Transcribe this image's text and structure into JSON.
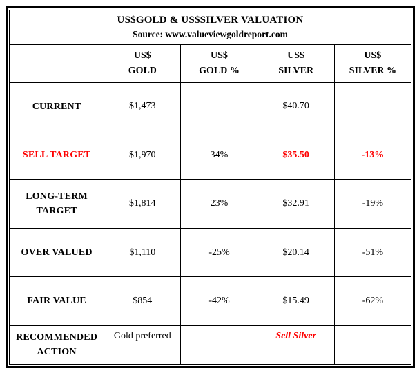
{
  "colors": {
    "accent_red": "#fe0000",
    "text": "#000000",
    "border": "#000000",
    "background": "#ffffff"
  },
  "table": {
    "title": "US$GOLD & US$SILVER VALUATION",
    "subtitle": "Source: www.valueviewgoldreport.com",
    "headers": [
      {
        "lines": [
          "US$",
          "GOLD"
        ]
      },
      {
        "lines": [
          "US$",
          "GOLD %"
        ]
      },
      {
        "lines": [
          "US$",
          "SILVER"
        ]
      },
      {
        "lines": [
          "US$",
          "SILVER %"
        ]
      }
    ],
    "rows": [
      {
        "label_lines": [
          "CURRENT"
        ],
        "gold": "$1,473",
        "gold_pct": "",
        "silver": "$40.70",
        "silver_pct": ""
      },
      {
        "label_lines": [
          "SELL TARGET"
        ],
        "gold": "$1,970",
        "gold_pct": "34%",
        "silver": "$35.50",
        "silver_pct": "-13%"
      },
      {
        "label_lines": [
          "LONG-TERM",
          "TARGET"
        ],
        "gold": "$1,814",
        "gold_pct": "23%",
        "silver": "$32.91",
        "silver_pct": "-19%"
      },
      {
        "label_lines": [
          "OVER VALUED"
        ],
        "gold": "$1,110",
        "gold_pct": "-25%",
        "silver": "$20.14",
        "silver_pct": "-51%"
      },
      {
        "label_lines": [
          "FAIR VALUE"
        ],
        "gold": "$854",
        "gold_pct": "-42%",
        "silver": "$15.49",
        "silver_pct": "-62%"
      },
      {
        "label_lines": [
          "RECOMMENDED",
          "ACTION"
        ],
        "gold": "Gold preferred",
        "gold_pct": "",
        "silver": "Sell Silver",
        "silver_pct": ""
      }
    ]
  },
  "chart_data": {
    "type": "table",
    "title": "US$GOLD & US$SILVER VALUATION",
    "subtitle": "Source: www.valueviewgoldreport.com",
    "columns": [
      "",
      "US$ GOLD",
      "US$ GOLD %",
      "US$ SILVER",
      "US$ SILVER %"
    ],
    "rows": [
      [
        "CURRENT",
        "$1,473",
        "",
        "$40.70",
        ""
      ],
      [
        "SELL TARGET",
        "$1,970",
        "34%",
        "$35.50",
        "-13%"
      ],
      [
        "LONG-TERM TARGET",
        "$1,814",
        "23%",
        "$32.91",
        "-19%"
      ],
      [
        "OVER VALUED",
        "$1,110",
        "-25%",
        "$20.14",
        "-51%"
      ],
      [
        "FAIR VALUE",
        "$854",
        "-42%",
        "$15.49",
        "-62%"
      ],
      [
        "RECOMMENDED ACTION",
        "Gold preferred",
        "",
        "Sell Silver",
        ""
      ]
    ],
    "highlights": {
      "sell_target_row_label_color": "#fe0000",
      "sell_target_silver_cells_color": "#fe0000",
      "recommended_silver_action_style": "red bold italic"
    }
  }
}
